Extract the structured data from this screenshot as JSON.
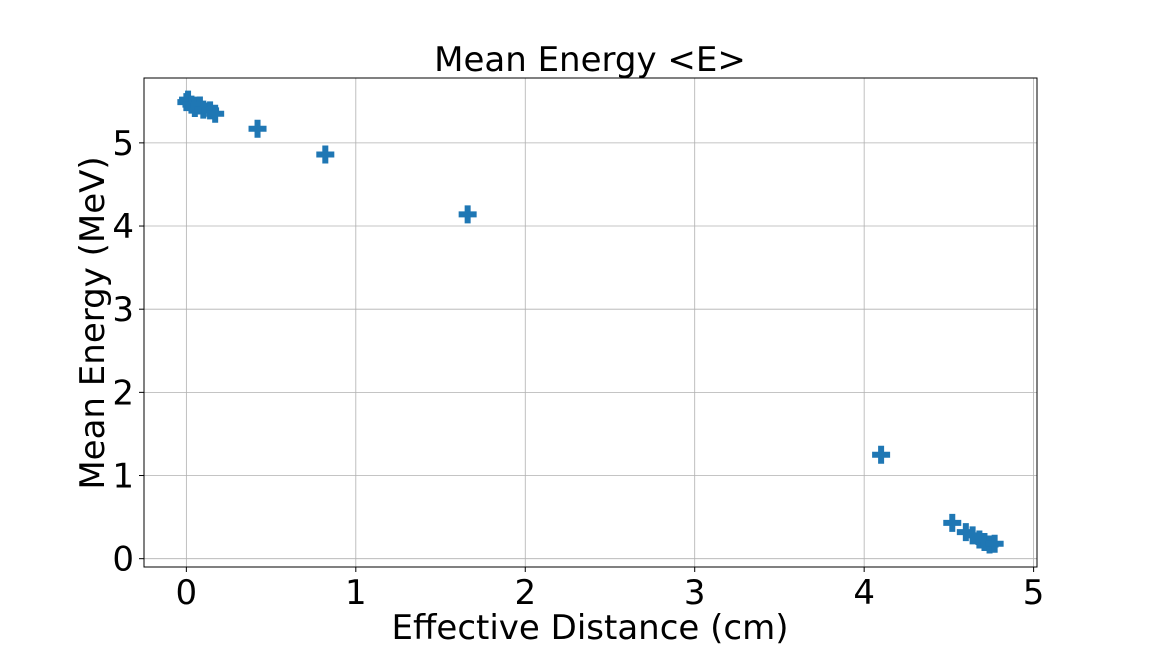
{
  "chart_data": {
    "type": "scatter",
    "title": "Mean Energy <E>",
    "xlabel": "Effective Distance (cm)",
    "ylabel": "Mean Energy (MeV)",
    "xlim": [
      -0.25,
      5.02
    ],
    "ylim": [
      -0.1,
      5.78
    ],
    "x_ticks": [
      0,
      1,
      2,
      3,
      4,
      5
    ],
    "y_ticks": [
      0,
      1,
      2,
      3,
      4,
      5
    ],
    "x_tick_labels": [
      "0",
      "1",
      "2",
      "3",
      "4",
      "5"
    ],
    "y_tick_labels": [
      "0",
      "1",
      "2",
      "3",
      "4",
      "5"
    ],
    "grid": true,
    "marker": "plus",
    "color": "#1f77b4",
    "points": [
      {
        "x": 0.0,
        "y": 5.49
      },
      {
        "x": 0.01,
        "y": 5.52
      },
      {
        "x": 0.03,
        "y": 5.46
      },
      {
        "x": 0.05,
        "y": 5.42
      },
      {
        "x": 0.08,
        "y": 5.45
      },
      {
        "x": 0.1,
        "y": 5.4
      },
      {
        "x": 0.14,
        "y": 5.39
      },
      {
        "x": 0.17,
        "y": 5.35
      },
      {
        "x": 0.42,
        "y": 5.17
      },
      {
        "x": 0.82,
        "y": 4.86
      },
      {
        "x": 1.66,
        "y": 4.14
      },
      {
        "x": 4.1,
        "y": 1.25
      },
      {
        "x": 4.52,
        "y": 0.43
      },
      {
        "x": 4.6,
        "y": 0.32
      },
      {
        "x": 4.64,
        "y": 0.28
      },
      {
        "x": 4.68,
        "y": 0.23
      },
      {
        "x": 4.71,
        "y": 0.2
      },
      {
        "x": 4.74,
        "y": 0.17
      },
      {
        "x": 4.77,
        "y": 0.18
      }
    ]
  }
}
